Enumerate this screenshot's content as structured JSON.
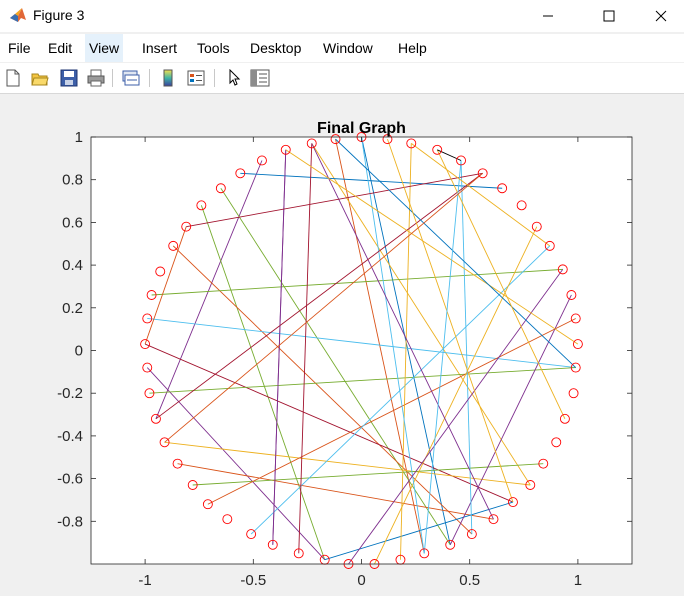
{
  "window": {
    "title": "Figure 3"
  },
  "menu": [
    "File",
    "Edit",
    "View",
    "Insert",
    "Tools",
    "Desktop",
    "Window",
    "Help"
  ],
  "toolbar_icons": [
    "new-figure-icon",
    "open-file-icon",
    "save-icon",
    "print-icon",
    "link-plot-icon",
    "insert-colorbar-icon",
    "insert-legend-icon",
    "pointer-icon",
    "property-inspector-icon"
  ],
  "chart_data": {
    "type": "scatter",
    "title": "Final Graph",
    "xlabel": "",
    "ylabel": "",
    "xlim": [
      -1.25,
      1.25
    ],
    "ylim": [
      -1,
      1
    ],
    "xticks": [
      "-1",
      "-0.5",
      "0",
      "0.5",
      "1"
    ],
    "yticks": [
      "1",
      "0.8",
      "0.6",
      "0.4",
      "0.2",
      "0",
      "-0.2",
      "-0.4",
      "-0.6",
      "-0.8"
    ],
    "marker_color": "#ff0000",
    "marker": "circle",
    "nodes": [
      {
        "x": 1.0,
        "y": 0.03
      },
      {
        "x": 0.99,
        "y": 0.15
      },
      {
        "x": 0.97,
        "y": 0.26
      },
      {
        "x": 0.93,
        "y": 0.38
      },
      {
        "x": 0.87,
        "y": 0.49
      },
      {
        "x": 0.81,
        "y": 0.58
      },
      {
        "x": 0.74,
        "y": 0.68
      },
      {
        "x": 0.65,
        "y": 0.76
      },
      {
        "x": 0.56,
        "y": 0.83
      },
      {
        "x": 0.46,
        "y": 0.89
      },
      {
        "x": 0.35,
        "y": 0.94
      },
      {
        "x": 0.23,
        "y": 0.97
      },
      {
        "x": 0.12,
        "y": 0.99
      },
      {
        "x": 0.0,
        "y": 1.0
      },
      {
        "x": -0.12,
        "y": 0.99
      },
      {
        "x": -0.23,
        "y": 0.97
      },
      {
        "x": -0.35,
        "y": 0.94
      },
      {
        "x": -0.46,
        "y": 0.89
      },
      {
        "x": -0.56,
        "y": 0.83
      },
      {
        "x": -0.65,
        "y": 0.76
      },
      {
        "x": -0.74,
        "y": 0.68
      },
      {
        "x": -0.81,
        "y": 0.58
      },
      {
        "x": -0.87,
        "y": 0.49
      },
      {
        "x": -0.93,
        "y": 0.37
      },
      {
        "x": -0.97,
        "y": 0.26
      },
      {
        "x": -0.99,
        "y": 0.15
      },
      {
        "x": -1.0,
        "y": 0.03
      },
      {
        "x": -0.99,
        "y": -0.08
      },
      {
        "x": -0.98,
        "y": -0.2
      },
      {
        "x": -0.95,
        "y": -0.32
      },
      {
        "x": -0.91,
        "y": -0.43
      },
      {
        "x": -0.85,
        "y": -0.53
      },
      {
        "x": -0.78,
        "y": -0.63
      },
      {
        "x": -0.71,
        "y": -0.72
      },
      {
        "x": -0.62,
        "y": -0.79
      },
      {
        "x": -0.51,
        "y": -0.86
      },
      {
        "x": -0.41,
        "y": -0.91
      },
      {
        "x": -0.29,
        "y": -0.95
      },
      {
        "x": -0.17,
        "y": -0.98
      },
      {
        "x": -0.06,
        "y": -1.0
      },
      {
        "x": 0.06,
        "y": -1.0
      },
      {
        "x": 0.18,
        "y": -0.98
      },
      {
        "x": 0.29,
        "y": -0.95
      },
      {
        "x": 0.41,
        "y": -0.91
      },
      {
        "x": 0.51,
        "y": -0.86
      },
      {
        "x": 0.61,
        "y": -0.79
      },
      {
        "x": 0.7,
        "y": -0.71
      },
      {
        "x": 0.78,
        "y": -0.63
      },
      {
        "x": 0.84,
        "y": -0.53
      },
      {
        "x": 0.9,
        "y": -0.43
      },
      {
        "x": 0.94,
        "y": -0.32
      },
      {
        "x": 0.98,
        "y": -0.2
      },
      {
        "x": 0.99,
        "y": -0.08
      }
    ],
    "edges": [
      {
        "from": 13,
        "to": 43,
        "color": "#0072bd"
      },
      {
        "from": 14,
        "to": 42,
        "color": "#d95319"
      },
      {
        "from": 15,
        "to": 47,
        "color": "#edb120"
      },
      {
        "from": 16,
        "to": 36,
        "color": "#7e2f8e"
      },
      {
        "from": 17,
        "to": 29,
        "color": "#7e2f8e"
      },
      {
        "from": 18,
        "to": 7,
        "color": "#0072bd"
      },
      {
        "from": 19,
        "to": 43,
        "color": "#77ac30"
      },
      {
        "from": 20,
        "to": 38,
        "color": "#77ac30"
      },
      {
        "from": 22,
        "to": 44,
        "color": "#d95319"
      },
      {
        "from": 24,
        "to": 3,
        "color": "#77ac30"
      },
      {
        "from": 25,
        "to": 52,
        "color": "#4dbeee"
      },
      {
        "from": 26,
        "to": 46,
        "color": "#a2142f"
      },
      {
        "from": 27,
        "to": 38,
        "color": "#7e2f8e"
      },
      {
        "from": 28,
        "to": 52,
        "color": "#77ac30"
      },
      {
        "from": 30,
        "to": 47,
        "color": "#edb120"
      },
      {
        "from": 31,
        "to": 45,
        "color": "#d95319"
      },
      {
        "from": 32,
        "to": 48,
        "color": "#77ac30"
      },
      {
        "from": 33,
        "to": 1,
        "color": "#d95319"
      },
      {
        "from": 35,
        "to": 4,
        "color": "#4dbeee"
      },
      {
        "from": 36,
        "to": 16,
        "color": "#7e2f8e"
      },
      {
        "from": 37,
        "to": 15,
        "color": "#a2142f"
      },
      {
        "from": 38,
        "to": 46,
        "color": "#0072bd"
      },
      {
        "from": 40,
        "to": 5,
        "color": "#edb120"
      },
      {
        "from": 41,
        "to": 11,
        "color": "#edb120"
      },
      {
        "from": 42,
        "to": 13,
        "color": "#4dbeee"
      },
      {
        "from": 43,
        "to": 2,
        "color": "#7e2f8e"
      },
      {
        "from": 44,
        "to": 9,
        "color": "#4dbeee"
      },
      {
        "from": 45,
        "to": 15,
        "color": "#7e2f8e"
      },
      {
        "from": 39,
        "to": 3,
        "color": "#7e2f8e"
      },
      {
        "from": 26,
        "to": 21,
        "color": "#d95319"
      },
      {
        "from": 29,
        "to": 8,
        "color": "#a2142f"
      },
      {
        "from": 21,
        "to": 8,
        "color": "#a2142f"
      },
      {
        "from": 16,
        "to": 0,
        "color": "#edb120"
      },
      {
        "from": 14,
        "to": 52,
        "color": "#0072bd"
      },
      {
        "from": 12,
        "to": 46,
        "color": "#edb120"
      },
      {
        "from": 10,
        "to": 50,
        "color": "#edb120"
      },
      {
        "from": 9,
        "to": 42,
        "color": "#4dbeee"
      },
      {
        "from": 8,
        "to": 30,
        "color": "#d95319"
      },
      {
        "from": 11,
        "to": 4,
        "color": "#edb120"
      },
      {
        "from": 10,
        "to": 9,
        "color": "#000000"
      }
    ]
  }
}
